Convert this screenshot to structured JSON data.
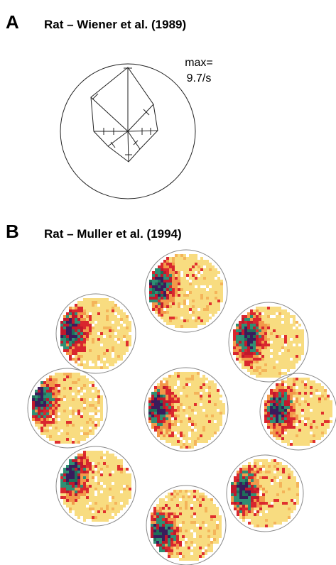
{
  "panel_a": {
    "label": "A",
    "title": "Rat – Wiener et al. (1989)",
    "max_label": "max=",
    "max_value": "9.7/s"
  },
  "panel_b": {
    "label": "B",
    "title": "Rat – Muller et al. (1994)"
  }
}
